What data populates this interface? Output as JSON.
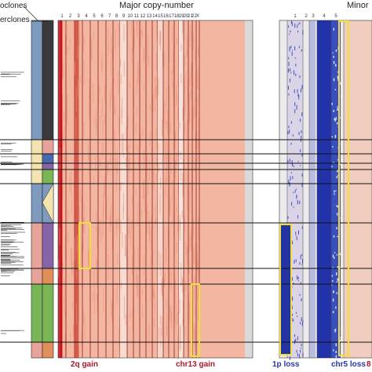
{
  "legend": {
    "subclones_label": "oclones",
    "superclones_label": "erclones"
  },
  "headers": {
    "major": "Major copy-number",
    "minor": "Minor"
  },
  "major_chromosomes": [
    "1",
    "2",
    "3",
    "4",
    "5",
    "6",
    "7",
    "8",
    "9",
    "10",
    "11",
    "12",
    "13",
    "14",
    "15",
    "16",
    "17",
    "18",
    "19",
    "20",
    "21",
    "22",
    "X"
  ],
  "minor_chromosomes": [
    "1",
    "2",
    "3",
    "4",
    "5"
  ],
  "annotations": {
    "gain_2q": "2q gain",
    "gain_chr13": "chr13 gain",
    "loss_1p": "1p loss",
    "loss_chr5": "chr5 loss",
    "trailing": "8"
  },
  "colors": {
    "gain_dark": "#c0141c",
    "gain_light": "#f3b7a1",
    "neutral": "#dadada",
    "loss_dark": "#2233aa",
    "highlight": "#f2dd3a",
    "subclone_blue": "#7e9bbd",
    "subclone_pink": "#e7a39a",
    "subclone_purple": "#8565a8",
    "subclone_orange": "#e08f5a",
    "subclone_green": "#7ab558"
  }
}
